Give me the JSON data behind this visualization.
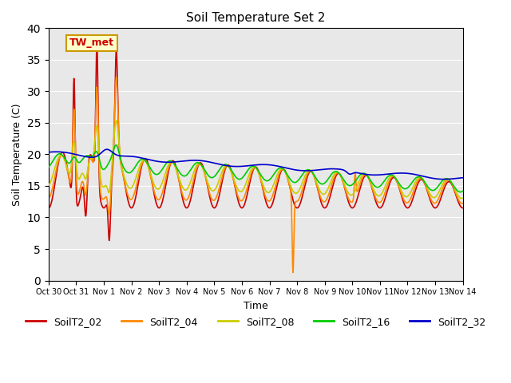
{
  "title": "Soil Temperature Set 2",
  "xlabel": "Time",
  "ylabel": "Soil Temperature (C)",
  "ylim": [
    0,
    40
  ],
  "background_color": "#e8e8e8",
  "annotation_text": "TW_met",
  "annotation_bg": "#ffffcc",
  "annotation_border": "#cc9900",
  "series_colors": {
    "SoilT2_02": "#cc0000",
    "SoilT2_04": "#ff8800",
    "SoilT2_08": "#cccc00",
    "SoilT2_16": "#00cc00",
    "SoilT2_32": "#0000cc"
  },
  "tick_labels": [
    "Oct 30",
    "Oct 31",
    "Nov 1",
    "Nov 2",
    "Nov 3",
    "Nov 4",
    "Nov 5",
    "Nov 6",
    "Nov 7",
    "Nov 8",
    "Nov 9",
    "Nov 10",
    "Nov 11",
    "Nov 12",
    "Nov 13",
    "Nov 14"
  ],
  "grid_color": "#ffffff",
  "line_width": 1.2
}
